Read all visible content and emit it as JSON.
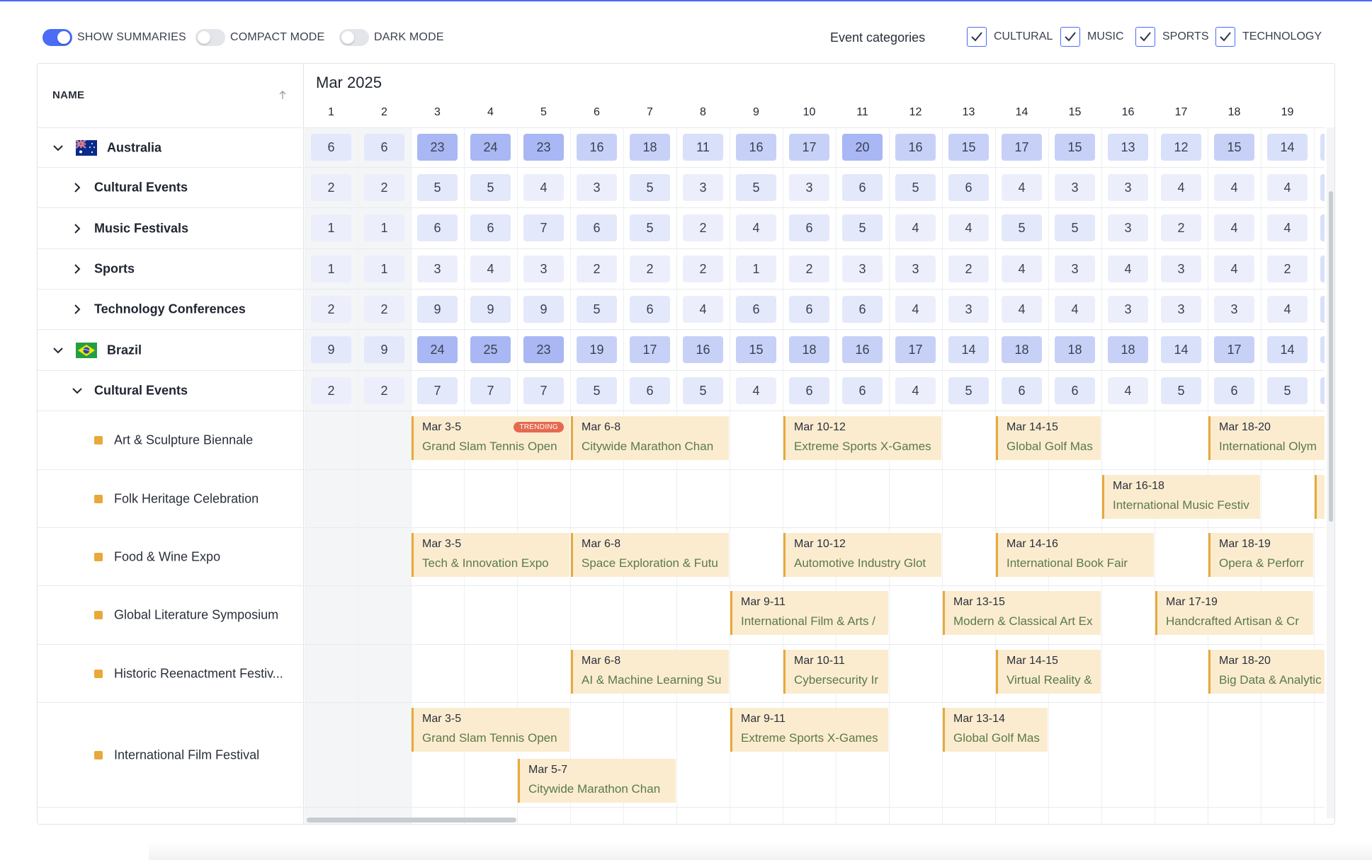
{
  "toolbar": {
    "toggles": [
      {
        "label": "SHOW SUMMARIES",
        "on": true
      },
      {
        "label": "COMPACT MODE",
        "on": false
      },
      {
        "label": "DARK MODE",
        "on": false
      }
    ],
    "categories_label": "Event categories",
    "categories": [
      {
        "label": "CULTURAL",
        "checked": true
      },
      {
        "label": "MUSIC",
        "checked": true
      },
      {
        "label": "SPORTS",
        "checked": true
      },
      {
        "label": "TECHNOLOGY",
        "checked": true
      }
    ]
  },
  "grid": {
    "name_header": "NAME",
    "month": "Mar 2025",
    "days": [
      "1",
      "2",
      "3",
      "4",
      "5",
      "6",
      "7",
      "8",
      "9",
      "10",
      "11",
      "12",
      "13",
      "14",
      "15",
      "16",
      "17",
      "18",
      "19"
    ],
    "rows": [
      {
        "label": "Australia",
        "level": 0,
        "expanded": true,
        "flag": "australia-flag",
        "values": [
          6,
          6,
          23,
          24,
          23,
          16,
          18,
          11,
          16,
          17,
          20,
          16,
          15,
          17,
          15,
          13,
          12,
          15,
          14
        ]
      },
      {
        "label": "Cultural Events",
        "level": 1,
        "expanded": false,
        "values": [
          2,
          2,
          5,
          5,
          4,
          3,
          5,
          3,
          5,
          3,
          6,
          5,
          6,
          4,
          3,
          3,
          4,
          4,
          4
        ]
      },
      {
        "label": "Music Festivals",
        "level": 1,
        "expanded": false,
        "values": [
          1,
          1,
          6,
          6,
          7,
          6,
          5,
          2,
          4,
          6,
          5,
          4,
          4,
          5,
          5,
          3,
          2,
          4,
          4
        ]
      },
      {
        "label": "Sports",
        "level": 1,
        "expanded": false,
        "values": [
          1,
          1,
          3,
          4,
          3,
          2,
          2,
          2,
          1,
          2,
          3,
          3,
          2,
          4,
          3,
          4,
          3,
          4,
          2
        ]
      },
      {
        "label": "Technology Conferences",
        "level": 1,
        "expanded": false,
        "values": [
          2,
          2,
          9,
          9,
          9,
          5,
          6,
          4,
          6,
          6,
          6,
          4,
          3,
          4,
          4,
          3,
          3,
          3,
          4
        ]
      },
      {
        "label": "Brazil",
        "level": 0,
        "expanded": true,
        "flag": "brazil-flag",
        "values": [
          9,
          9,
          24,
          25,
          23,
          19,
          17,
          16,
          15,
          18,
          16,
          17,
          14,
          18,
          18,
          18,
          14,
          17,
          14
        ]
      },
      {
        "label": "Cultural Events",
        "level": 1,
        "expanded": true,
        "values": [
          2,
          2,
          7,
          7,
          7,
          5,
          6,
          5,
          4,
          6,
          6,
          4,
          5,
          6,
          6,
          4,
          5,
          6,
          5
        ]
      }
    ],
    "event_rows": [
      {
        "label": "Art & Sculpture Biennale",
        "events": [
          {
            "dates": "Mar 3-5",
            "title": "Grand Slam Tennis Open",
            "start": 3,
            "end": 5,
            "lane": 0,
            "badge": "TRENDING"
          },
          {
            "dates": "Mar 6-8",
            "title": "Citywide Marathon Chan",
            "start": 6,
            "end": 8,
            "lane": 0
          },
          {
            "dates": "Mar 10-12",
            "title": "Extreme Sports X-Games",
            "start": 10,
            "end": 12,
            "lane": 0
          },
          {
            "dates": "Mar 14-15",
            "title": "Global Golf Mas",
            "start": 14,
            "end": 15,
            "lane": 0
          },
          {
            "dates": "Mar 18-20",
            "title": "International Olym",
            "start": 18,
            "end": 20,
            "lane": 0
          }
        ]
      },
      {
        "label": "Folk Heritage Celebration",
        "events": [
          {
            "dates": "Mar 16-18",
            "title": "International Music Festiv",
            "start": 16,
            "end": 18,
            "lane": 0
          },
          {
            "dates": "",
            "title": "",
            "start": 20,
            "end": 21,
            "lane": 0
          }
        ]
      },
      {
        "label": "Food & Wine Expo",
        "events": [
          {
            "dates": "Mar 3-5",
            "title": "Tech & Innovation Expo",
            "start": 3,
            "end": 5,
            "lane": 0
          },
          {
            "dates": "Mar 6-8",
            "title": "Space Exploration & Futu",
            "start": 6,
            "end": 8,
            "lane": 0
          },
          {
            "dates": "Mar 10-12",
            "title": "Automotive Industry Glot",
            "start": 10,
            "end": 12,
            "lane": 0
          },
          {
            "dates": "Mar 14-16",
            "title": "International Book Fair",
            "start": 14,
            "end": 16,
            "lane": 0
          },
          {
            "dates": "Mar 18-19",
            "title": "Opera & Perforr",
            "start": 18,
            "end": 19,
            "lane": 0
          }
        ]
      },
      {
        "label": "Global Literature Symposium",
        "events": [
          {
            "dates": "Mar 9-11",
            "title": "International Film & Arts /",
            "start": 9,
            "end": 11,
            "lane": 0
          },
          {
            "dates": "Mar 13-15",
            "title": "Modern & Classical Art Ex",
            "start": 13,
            "end": 15,
            "lane": 0
          },
          {
            "dates": "Mar 17-19",
            "title": "Handcrafted Artisan & Cr",
            "start": 17,
            "end": 19,
            "lane": 0
          }
        ]
      },
      {
        "label": "Historic Reenactment Festiv...",
        "events": [
          {
            "dates": "Mar 6-8",
            "title": "AI & Machine Learning Su",
            "start": 6,
            "end": 8,
            "lane": 0
          },
          {
            "dates": "Mar 10-11",
            "title": "Cybersecurity Ir",
            "start": 10,
            "end": 11,
            "lane": 0
          },
          {
            "dates": "Mar 14-15",
            "title": "Virtual Reality &",
            "start": 14,
            "end": 15,
            "lane": 0
          },
          {
            "dates": "Mar 18-20",
            "title": "Big Data & Analytic",
            "start": 18,
            "end": 20,
            "lane": 0
          }
        ]
      },
      {
        "label": "International Film Festival",
        "events": [
          {
            "dates": "Mar 3-5",
            "title": "Grand Slam Tennis Open",
            "start": 3,
            "end": 5,
            "lane": 0
          },
          {
            "dates": "Mar 9-11",
            "title": "Extreme Sports X-Games",
            "start": 9,
            "end": 11,
            "lane": 0
          },
          {
            "dates": "Mar 13-14",
            "title": "Global Golf Mas",
            "start": 13,
            "end": 14,
            "lane": 0
          },
          {
            "dates": "Mar 5-7",
            "title": "Citywide Marathon Chan",
            "start": 5,
            "end": 7,
            "lane": 1
          }
        ]
      }
    ]
  }
}
